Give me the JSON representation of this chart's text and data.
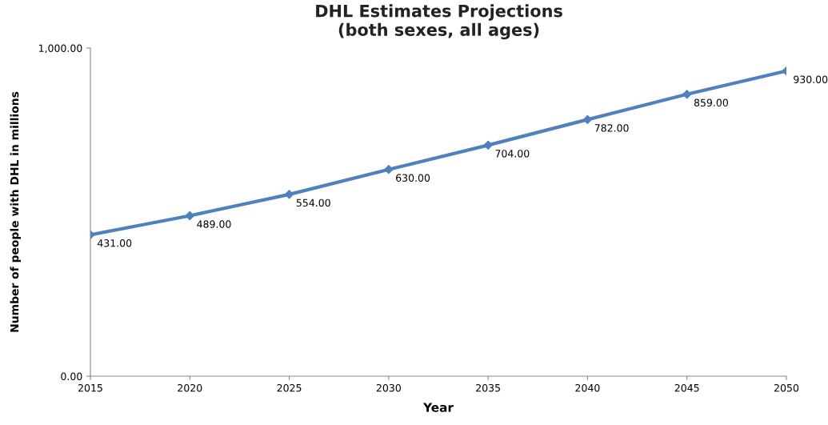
{
  "chart_data": {
    "type": "line",
    "title": "DHL Estimates Projections\n(both sexes, all ages)",
    "xlabel": "Year",
    "ylabel": "Number of people with DHL in millions",
    "x": [
      2015,
      2020,
      2025,
      2030,
      2035,
      2040,
      2045,
      2050
    ],
    "series": [
      {
        "color": "#4f81bd",
        "values": [
          431,
          489,
          554,
          630,
          704,
          782,
          859,
          930
        ],
        "value_labels": [
          "431.00",
          "489.00",
          "554.00",
          "630.00",
          "704.00",
          "782.00",
          "859.00",
          "930.00"
        ]
      }
    ],
    "xlim": [
      2015,
      2050
    ],
    "xticks": [
      2015,
      2020,
      2025,
      2030,
      2035,
      2040,
      2045,
      2050
    ],
    "ylim": [
      0,
      1000
    ],
    "yticks": [
      {
        "value": 0,
        "label": "0.00"
      },
      {
        "value": 1000,
        "label": "1,000.00"
      }
    ],
    "grid": false,
    "legend": false,
    "marker": "diamond",
    "line_style": "solid"
  }
}
